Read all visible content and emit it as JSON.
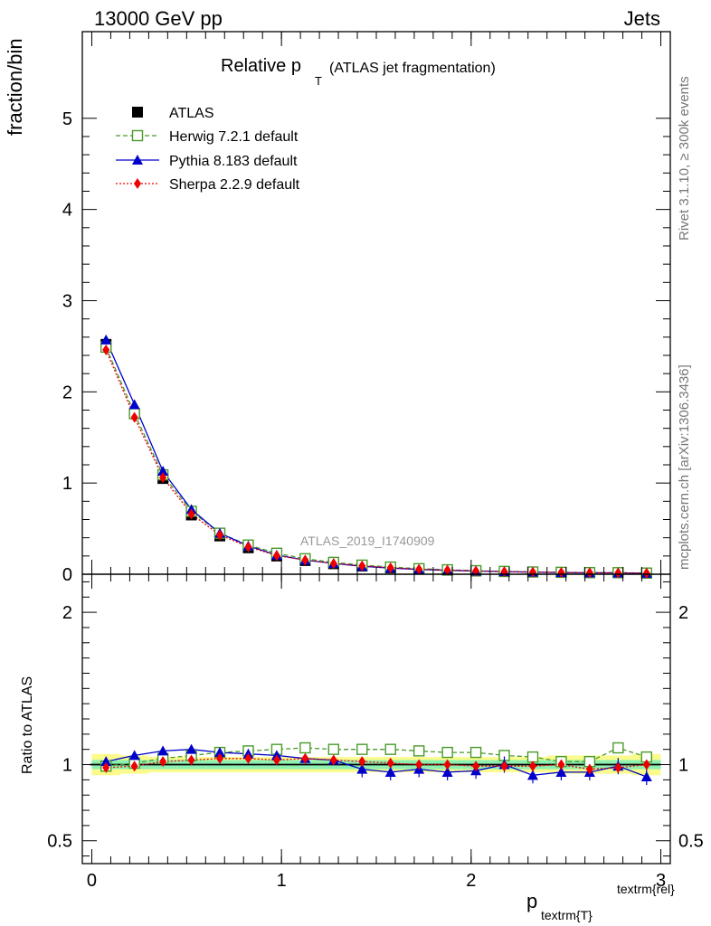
{
  "header": {
    "left": "13000 GeV pp",
    "right": "Jets"
  },
  "side_text": {
    "rivet": "Rivet 3.1.10, ≥ 300k events",
    "mcplots": "mcplots.cern.ch [arXiv:1306.3436]"
  },
  "watermark": "ATLAS_2019_I1740909",
  "axes": {
    "main_ylabel": "fraction/bin",
    "ratio_ylabel": "Ratio to ATLAS",
    "xlabel_main": "p",
    "xlabel_sub": "textrm{T",
    "xlabel_sup": "textrm{rel",
    "xlabel_close_sub": "}",
    "xlabel_close_sup": "}"
  },
  "chart_data": [
    {
      "type": "line",
      "panel": "main",
      "title": "Relative p",
      "title_sub": "T",
      "title_suffix": "(ATLAS jet fragmentation)",
      "xlim": [
        -0.05,
        3.05
      ],
      "ylim": [
        0,
        5.95
      ],
      "x_ticks": [
        "0",
        "1",
        "2",
        "3"
      ],
      "y_ticks": [
        "0",
        "1",
        "2",
        "3",
        "4",
        "5"
      ],
      "x": [
        0.075,
        0.225,
        0.375,
        0.525,
        0.675,
        0.825,
        0.975,
        1.125,
        1.275,
        1.425,
        1.575,
        1.725,
        1.875,
        2.025,
        2.175,
        2.325,
        2.475,
        2.625,
        2.775,
        2.925
      ],
      "series": [
        {
          "name": "ATLAS",
          "style": "data",
          "color": "#000000",
          "values": [
            2.52,
            1.76,
            1.05,
            0.65,
            0.42,
            0.29,
            0.2,
            0.15,
            0.115,
            0.09,
            0.07,
            0.055,
            0.045,
            0.036,
            0.029,
            0.024,
            0.02,
            0.017,
            0.015,
            0.012
          ]
        },
        {
          "name": "Herwig 7.2.1 default",
          "style": "dashed-open-square",
          "color": "#4a9a2a",
          "values": [
            2.49,
            1.76,
            1.09,
            0.69,
            0.45,
            0.32,
            0.23,
            0.17,
            0.13,
            0.1,
            0.079,
            0.061,
            0.049,
            0.039,
            0.031,
            0.025,
            0.021,
            0.018,
            0.017,
            0.013
          ]
        },
        {
          "name": "Pythia 8.183 default",
          "style": "solid-triangle",
          "color": "#0000cc",
          "values": [
            2.57,
            1.86,
            1.13,
            0.71,
            0.45,
            0.31,
            0.21,
            0.155,
            0.118,
            0.087,
            0.067,
            0.053,
            0.043,
            0.035,
            0.029,
            0.023,
            0.019,
            0.016,
            0.015,
            0.011
          ]
        },
        {
          "name": "Sherpa 2.2.9 default",
          "style": "dotted-diamond",
          "color": "#ee0000",
          "values": [
            2.46,
            1.72,
            1.06,
            0.66,
            0.43,
            0.3,
            0.205,
            0.155,
            0.118,
            0.092,
            0.071,
            0.055,
            0.045,
            0.036,
            0.029,
            0.024,
            0.02,
            0.017,
            0.015,
            0.012
          ]
        }
      ]
    },
    {
      "type": "line",
      "panel": "ratio",
      "xlim": [
        -0.05,
        3.05
      ],
      "ylim": [
        0.35,
        2.25
      ],
      "x_ticks": [
        "0",
        "1",
        "2",
        "3"
      ],
      "y_ticks": [
        "0.5",
        "1",
        "2"
      ],
      "y_tick_values": [
        0.5,
        1,
        2
      ],
      "x": [
        0.075,
        0.225,
        0.375,
        0.525,
        0.675,
        0.825,
        0.975,
        1.125,
        1.275,
        1.425,
        1.575,
        1.725,
        1.875,
        2.025,
        2.175,
        2.325,
        2.475,
        2.625,
        2.775,
        2.925
      ],
      "band_inner": [
        0.03,
        0.03,
        0.03,
        0.03,
        0.03,
        0.03,
        0.03,
        0.03,
        0.03,
        0.03,
        0.03,
        0.03,
        0.03,
        0.03,
        0.03,
        0.03,
        0.03,
        0.03,
        0.03,
        0.03
      ],
      "band_outer": [
        0.07,
        0.06,
        0.05,
        0.05,
        0.05,
        0.05,
        0.05,
        0.05,
        0.05,
        0.05,
        0.05,
        0.05,
        0.05,
        0.05,
        0.05,
        0.05,
        0.06,
        0.06,
        0.06,
        0.07
      ],
      "series": [
        {
          "name": "Herwig 7.2.1 default",
          "color": "#4a9a2a",
          "values": [
            0.99,
            1.01,
            1.04,
            1.06,
            1.08,
            1.09,
            1.1,
            1.11,
            1.1,
            1.1,
            1.1,
            1.09,
            1.08,
            1.08,
            1.06,
            1.05,
            1.02,
            1.02,
            1.11,
            1.05
          ]
        },
        {
          "name": "Pythia 8.183 default",
          "color": "#0000cc",
          "values": [
            1.02,
            1.06,
            1.09,
            1.1,
            1.08,
            1.07,
            1.06,
            1.04,
            1.03,
            0.97,
            0.95,
            0.97,
            0.95,
            0.96,
            1.0,
            0.93,
            0.95,
            0.95,
            0.99,
            0.92
          ]
        },
        {
          "name": "Sherpa 2.2.9 default",
          "color": "#ee0000",
          "values": [
            0.98,
            0.99,
            1.02,
            1.03,
            1.04,
            1.04,
            1.03,
            1.04,
            1.03,
            1.02,
            1.01,
            1.0,
            1.0,
            0.99,
            0.99,
            0.99,
            1.0,
            0.97,
            0.98,
            1.0
          ]
        }
      ]
    }
  ]
}
